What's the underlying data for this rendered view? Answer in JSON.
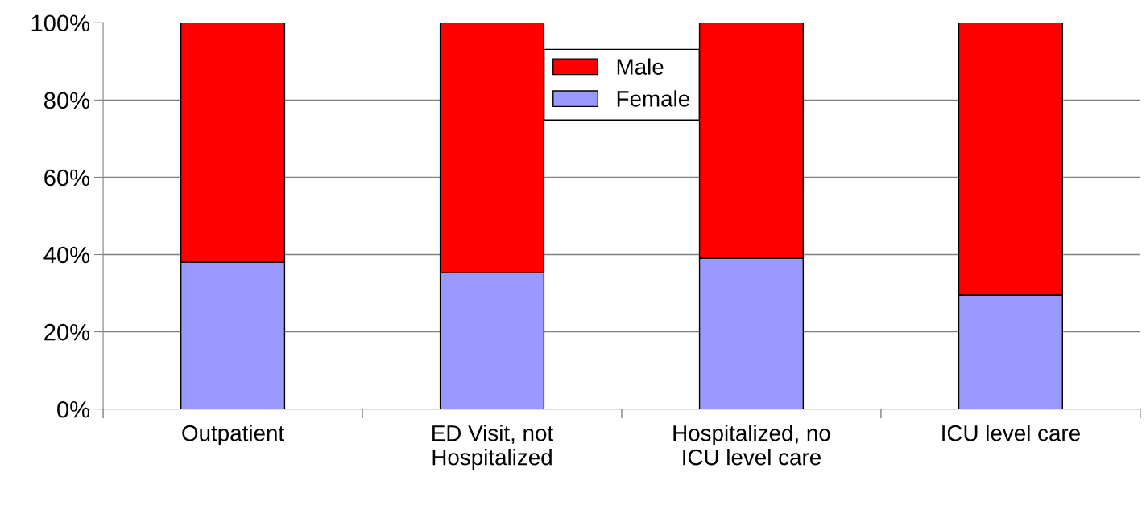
{
  "chart_data": {
    "type": "bar",
    "stacked": true,
    "categories": [
      "Outpatient",
      "ED Visit, not\nHospitalized",
      "Hospitalized, no\nICU level care",
      "ICU level care"
    ],
    "series": [
      {
        "name": "Female",
        "color": "#9999ff",
        "values": [
          38,
          35.3,
          39,
          29.5
        ]
      },
      {
        "name": "Male",
        "color": "#ff0000",
        "values": [
          62,
          64.7,
          61,
          70.5
        ]
      }
    ],
    "ylim": [
      0,
      100
    ],
    "yticks": [
      {
        "value": 0,
        "label": "0%"
      },
      {
        "value": 20,
        "label": "20%"
      },
      {
        "value": 40,
        "label": "40%"
      },
      {
        "value": 60,
        "label": "60%"
      },
      {
        "value": 80,
        "label": "80%"
      },
      {
        "value": 100,
        "label": "100%"
      }
    ],
    "grid": "y",
    "legend": "top center"
  }
}
